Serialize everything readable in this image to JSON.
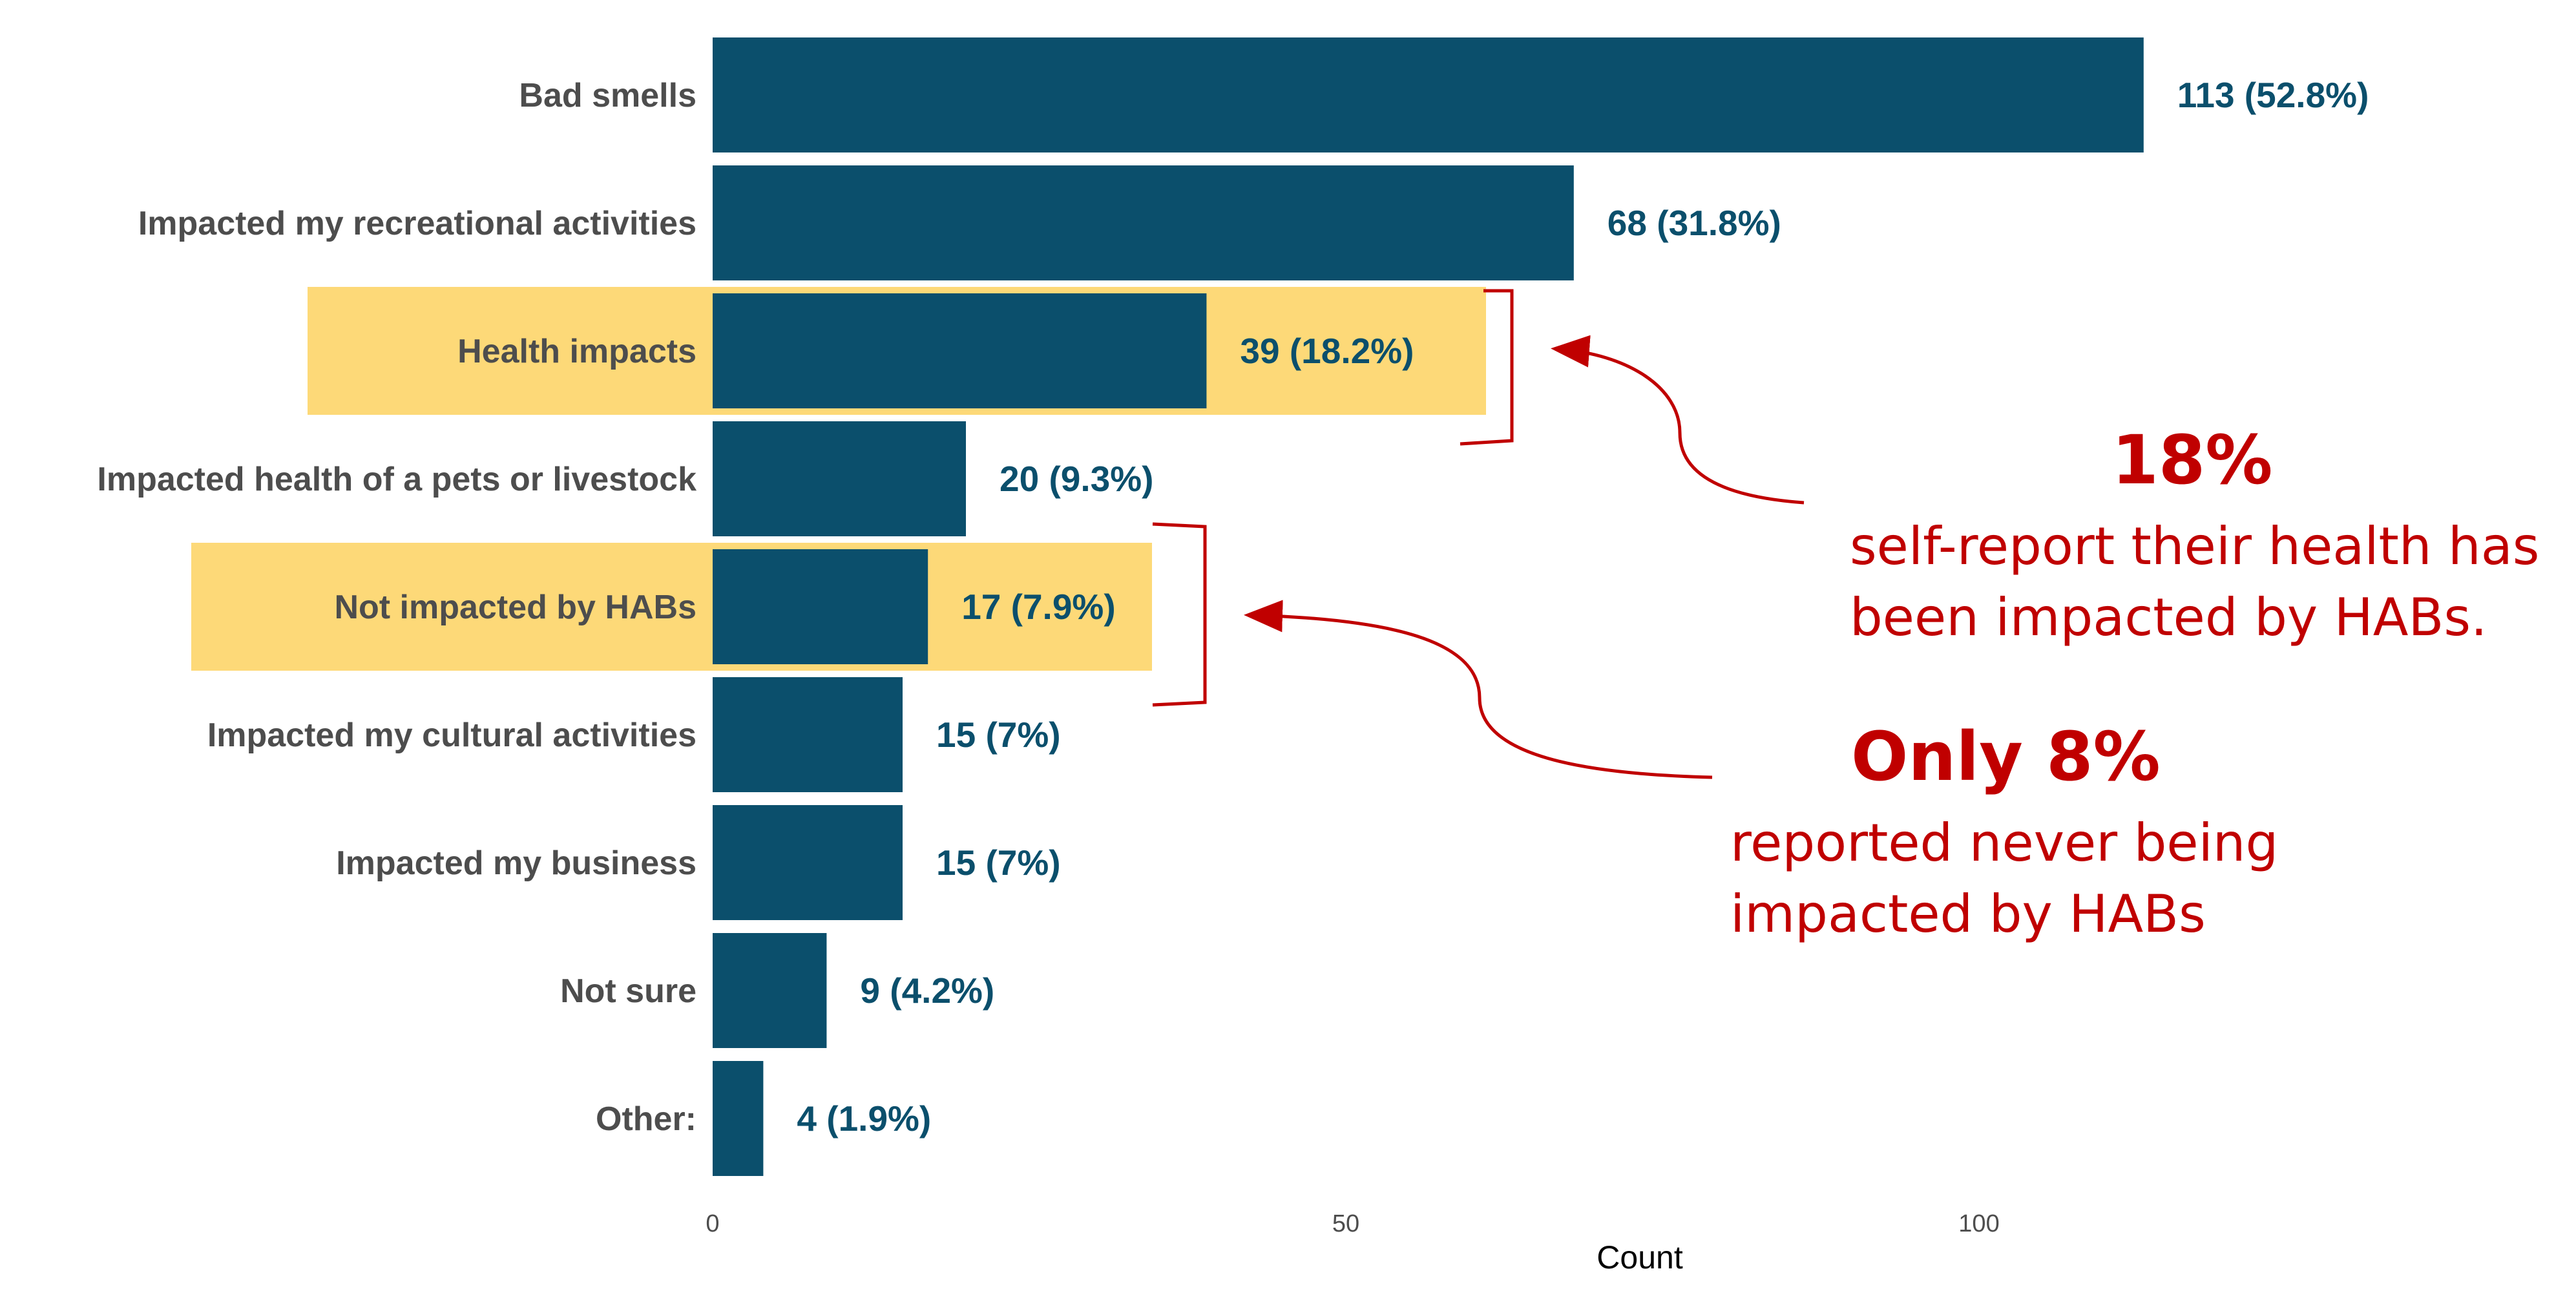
{
  "chart_data": {
    "type": "bar",
    "orientation": "horizontal",
    "categories": [
      "Bad smells",
      "Impacted my recreational activities",
      "Health impacts",
      "Impacted health of a pets or livestock",
      "Not impacted by HABs",
      "Impacted my cultural activities",
      "Impacted my business",
      "Not sure",
      "Other:"
    ],
    "values": [
      113,
      68,
      39,
      20,
      17,
      15,
      15,
      9,
      4
    ],
    "data_labels": [
      "113 (52.8%)",
      "68 (31.8%)",
      "39 (18.2%)",
      "20 (9.3%)",
      "17 (7.9%)",
      "15 (7%)",
      "15 (7%)",
      "9 (4.2%)",
      "4 (1.9%)"
    ],
    "highlighted": [
      "Health impacts",
      "Not impacted by HABs"
    ],
    "xlabel": "Count",
    "ylabel": "",
    "xlim": [
      0,
      140
    ],
    "xticks": [
      0,
      50,
      100
    ],
    "grid": false,
    "legend": "none",
    "colors": {
      "bar": "#0b4f6c",
      "highlight": "#fdd978",
      "annotation": "#c00000",
      "label": "#4d4d4d"
    },
    "annotations": [
      {
        "target": "Health impacts",
        "headline": "18%",
        "lines": [
          "self-report their health has",
          "been impacted by HABs."
        ]
      },
      {
        "target": "Not impacted by HABs",
        "headline": "Only 8%",
        "lines": [
          "reported never being",
          "impacted by HABs"
        ]
      }
    ]
  }
}
